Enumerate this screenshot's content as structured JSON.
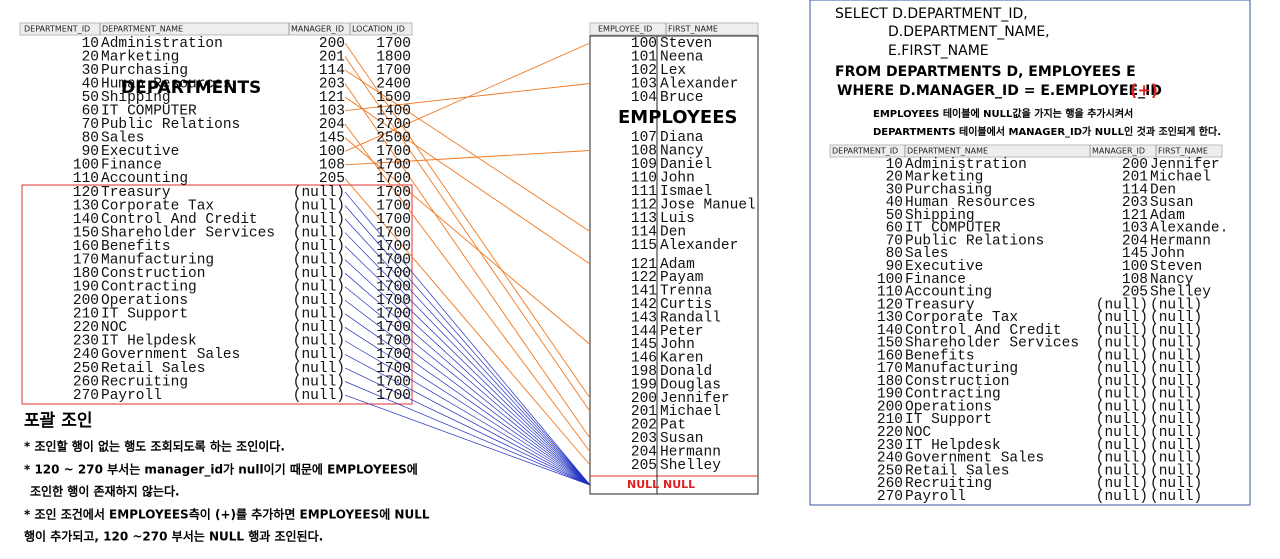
{
  "departments": {
    "label": "DEPARTMENTS",
    "headers": [
      "DEPARTMENT_ID",
      "DEPARTMENT_NAME",
      "MANAGER_ID",
      "LOCATION_ID"
    ],
    "rows": [
      [
        10,
        "Administration",
        200,
        1700
      ],
      [
        20,
        "Marketing",
        201,
        1800
      ],
      [
        30,
        "Purchasing",
        114,
        1700
      ],
      [
        40,
        "Human Resources",
        203,
        2400
      ],
      [
        50,
        "Shipping",
        121,
        1500
      ],
      [
        60,
        "IT COMPUTER",
        103,
        1400
      ],
      [
        70,
        "Public Relations",
        204,
        2700
      ],
      [
        80,
        "Sales",
        145,
        2500
      ],
      [
        90,
        "Executive",
        100,
        1700
      ],
      [
        100,
        "Finance",
        108,
        1700
      ],
      [
        110,
        "Accounting",
        205,
        1700
      ],
      [
        120,
        "Treasury",
        "(null)",
        1700
      ],
      [
        130,
        "Corporate Tax",
        "(null)",
        1700
      ],
      [
        140,
        "Control And Credit",
        "(null)",
        1700
      ],
      [
        150,
        "Shareholder Services",
        "(null)",
        1700
      ],
      [
        160,
        "Benefits",
        "(null)",
        1700
      ],
      [
        170,
        "Manufacturing",
        "(null)",
        1700
      ],
      [
        180,
        "Construction",
        "(null)",
        1700
      ],
      [
        190,
        "Contracting",
        "(null)",
        1700
      ],
      [
        200,
        "Operations",
        "(null)",
        1700
      ],
      [
        210,
        "IT Support",
        "(null)",
        1700
      ],
      [
        220,
        "NOC",
        "(null)",
        1700
      ],
      [
        230,
        "IT Helpdesk",
        "(null)",
        1700
      ],
      [
        240,
        "Government Sales",
        "(null)",
        1700
      ],
      [
        250,
        "Retail Sales",
        "(null)",
        1700
      ],
      [
        260,
        "Recruiting",
        "(null)",
        1700
      ],
      [
        270,
        "Payroll",
        "(null)",
        1700
      ]
    ]
  },
  "employees": {
    "label": "EMPLOYEES",
    "headers": [
      "EMPLOYEE_ID",
      "FIRST_NAME"
    ],
    "rows": [
      [
        100,
        "Steven"
      ],
      [
        101,
        "Neena"
      ],
      [
        102,
        "Lex"
      ],
      [
        103,
        "Alexander"
      ],
      [
        104,
        "Bruce"
      ],
      [
        107,
        "Diana"
      ],
      [
        108,
        "Nancy"
      ],
      [
        109,
        "Daniel"
      ],
      [
        110,
        "John"
      ],
      [
        111,
        "Ismael"
      ],
      [
        112,
        "Jose Manuel"
      ],
      [
        113,
        "Luis"
      ],
      [
        114,
        "Den"
      ],
      [
        115,
        "Alexander"
      ],
      [
        121,
        "Adam"
      ],
      [
        122,
        "Payam"
      ],
      [
        141,
        "Trenna"
      ],
      [
        142,
        "Curtis"
      ],
      [
        143,
        "Randall"
      ],
      [
        144,
        "Peter"
      ],
      [
        145,
        "John"
      ],
      [
        146,
        "Karen"
      ],
      [
        198,
        "Donald"
      ],
      [
        199,
        "Douglas"
      ],
      [
        200,
        "Jennifer"
      ],
      [
        201,
        "Michael"
      ],
      [
        202,
        "Pat"
      ],
      [
        203,
        "Susan"
      ],
      [
        204,
        "Hermann"
      ],
      [
        205,
        "Shelley"
      ]
    ],
    "null_row": [
      "NULL",
      "NULL"
    ]
  },
  "notes": {
    "title": "포괄 조인",
    "lines": [
      "* 조인할 행이 없는 행도 조회되도록 하는 조인이다.",
      "* 120 ~ 270 부서는 manager_id가 null이기 때문에 EMPLOYEES에",
      "조인한 행이 존재하지 않는다.",
      "* 조인 조건에서 EMPLOYEES측이 (+)를 추가하면 EMPLOYEES에 NULL",
      "행이 추가되고, 120 ~270 부서는 NULL 행과 조인된다."
    ]
  },
  "sql": {
    "lines": [
      "SELECT D.DEPARTMENT_ID,",
      "D.DEPARTMENT_NAME,",
      "E.FIRST_NAME",
      "FROM DEPARTMENTS D, EMPLOYEES E",
      "WHERE D.MANAGER_ID = E.EMPLOYEE_ID"
    ],
    "outer_mark": "(+)",
    "notes": [
      "EMPLOYEES 테이블에 NULL값을 가지는 행을 추가시켜서",
      "DEPARTMENTS 테이블에서 MANAGER_ID가 NULL인 것과 조인되게 한다."
    ]
  },
  "result": {
    "headers": [
      "DEPARTMENT_ID",
      "DEPARTMENT_NAME",
      "MANAGER_ID",
      "FIRST_NAME"
    ],
    "rows": [
      [
        10,
        "Administration",
        200,
        "Jennifer"
      ],
      [
        20,
        "Marketing",
        201,
        "Michael"
      ],
      [
        30,
        "Purchasing",
        114,
        "Den"
      ],
      [
        40,
        "Human Resources",
        203,
        "Susan"
      ],
      [
        50,
        "Shipping",
        121,
        "Adam"
      ],
      [
        60,
        "IT COMPUTER",
        103,
        "Alexande."
      ],
      [
        70,
        "Public Relations",
        204,
        "Hermann"
      ],
      [
        80,
        "Sales",
        145,
        "John"
      ],
      [
        90,
        "Executive",
        100,
        "Steven"
      ],
      [
        100,
        "Finance",
        108,
        "Nancy"
      ],
      [
        110,
        "Accounting",
        205,
        "Shelley"
      ],
      [
        120,
        "Treasury",
        "(null)",
        "(null)"
      ],
      [
        130,
        "Corporate Tax",
        "(null)",
        "(null)"
      ],
      [
        140,
        "Control And Credit",
        "(null)",
        "(null)"
      ],
      [
        150,
        "Shareholder Services",
        "(null)",
        "(null)"
      ],
      [
        160,
        "Benefits",
        "(null)",
        "(null)"
      ],
      [
        170,
        "Manufacturing",
        "(null)",
        "(null)"
      ],
      [
        180,
        "Construction",
        "(null)",
        "(null)"
      ],
      [
        190,
        "Contracting",
        "(null)",
        "(null)"
      ],
      [
        200,
        "Operations",
        "(null)",
        "(null)"
      ],
      [
        210,
        "IT Support",
        "(null)",
        "(null)"
      ],
      [
        220,
        "NOC",
        "(null)",
        "(null)"
      ],
      [
        230,
        "IT Helpdesk",
        "(null)",
        "(null)"
      ],
      [
        240,
        "Government Sales",
        "(null)",
        "(null)"
      ],
      [
        250,
        "Retail Sales",
        "(null)",
        "(null)"
      ],
      [
        260,
        "Recruiting",
        "(null)",
        "(null)"
      ],
      [
        270,
        "Payroll",
        "(null)",
        "(null)"
      ]
    ]
  }
}
